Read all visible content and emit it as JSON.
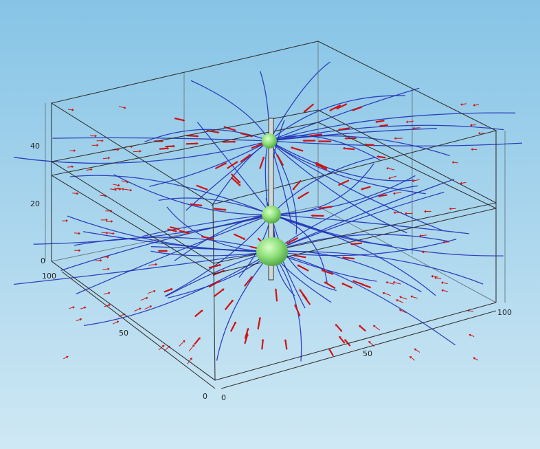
{
  "axes": {
    "z": {
      "ticks": [
        0,
        20,
        40
      ]
    },
    "x": {
      "ticks": [
        100,
        50,
        0
      ]
    },
    "y": {
      "ticks": [
        0,
        50,
        100
      ]
    }
  }
}
